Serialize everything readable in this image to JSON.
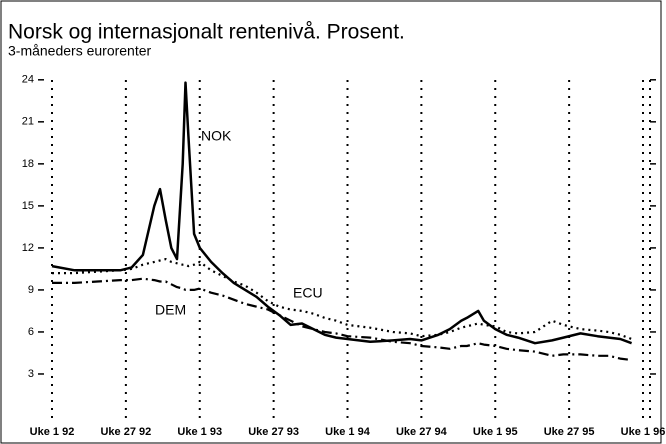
{
  "chart_data": {
    "type": "line",
    "title": "Norsk og internasjonalt rentenivå. Prosent.",
    "subtitle": "3-måneders eurorenter",
    "x": [
      0,
      8,
      16,
      24,
      28,
      32,
      36,
      38,
      40,
      42,
      44,
      46,
      47,
      48,
      50,
      52,
      56,
      60,
      64,
      68,
      72,
      76,
      80,
      84,
      88,
      92,
      96,
      100,
      104,
      112,
      120,
      126,
      130,
      136,
      140,
      144,
      146,
      150,
      152,
      156,
      160,
      164,
      170,
      176,
      180,
      186,
      192,
      196,
      200,
      204
    ],
    "xlim": [
      0,
      208
    ],
    "xticks": [
      {
        "value": 0,
        "label": "Uke 1 92"
      },
      {
        "value": 26,
        "label": "Uke 27 92"
      },
      {
        "value": 52,
        "label": "Uke 1 93"
      },
      {
        "value": 78,
        "label": "Uke 27 93"
      },
      {
        "value": 104,
        "label": "Uke 1 94"
      },
      {
        "value": 130,
        "label": "Uke 27 94"
      },
      {
        "value": 156,
        "label": "Uke 1 95"
      },
      {
        "value": 182,
        "label": "Uke 27 95"
      },
      {
        "value": 208,
        "label": "Uke 1 96"
      }
    ],
    "ylim": [
      0,
      24.7
    ],
    "yticks": [
      3,
      6,
      9,
      12,
      15,
      18,
      21,
      24
    ],
    "grid": true,
    "series": [
      {
        "name": "NOK",
        "color": "#000000",
        "style": "solid",
        "values": [
          10.7,
          10.4,
          10.4,
          10.4,
          10.6,
          11.5,
          15,
          16.2,
          14,
          12,
          11.2,
          18,
          23.8,
          20,
          13,
          12,
          11,
          10.2,
          9.5,
          9,
          8.5,
          7.8,
          7.2,
          6.5,
          6.6,
          6.2,
          5.8,
          5.6,
          5.5,
          5.3,
          5.4,
          5.5,
          5.4,
          5.8,
          6.2,
          6.8,
          7,
          7.5,
          6.8,
          6.2,
          5.8,
          5.6,
          5.2,
          5.4,
          5.6,
          5.9,
          5.7,
          5.6,
          5.5,
          5.2
        ]
      },
      {
        "name": "ECU",
        "color": "#000000",
        "style": "dotted",
        "values": [
          10.2,
          10.2,
          10.3,
          10.4,
          10.5,
          10.8,
          11,
          11.1,
          11.2,
          11,
          10.9,
          10.8,
          10.8,
          10.7,
          10.8,
          11,
          10.4,
          10,
          9.6,
          9.3,
          8.8,
          8.2,
          7.8,
          7.6,
          7.5,
          7.3,
          7,
          6.8,
          6.5,
          6.3,
          6,
          5.9,
          5.7,
          5.8,
          6,
          6.3,
          6.4,
          6.6,
          6.5,
          6.4,
          6,
          5.9,
          6,
          6.8,
          6.5,
          6.2,
          6.1,
          6,
          5.8,
          5.5
        ]
      },
      {
        "name": "DEM",
        "color": "#000000",
        "style": "dashdot",
        "values": [
          9.5,
          9.5,
          9.6,
          9.7,
          9.7,
          9.8,
          9.7,
          9.6,
          9.6,
          9.4,
          9.2,
          9.1,
          9,
          9,
          9,
          9.1,
          8.8,
          8.6,
          8.3,
          8,
          7.8,
          7.6,
          7.2,
          6.8,
          6.4,
          6.2,
          6,
          5.9,
          5.7,
          5.6,
          5.3,
          5.2,
          5,
          4.9,
          4.8,
          5,
          5,
          5.2,
          5.1,
          5,
          4.8,
          4.7,
          4.6,
          4.3,
          4.4,
          4.4,
          4.3,
          4.3,
          4.1,
          4
        ]
      }
    ]
  }
}
